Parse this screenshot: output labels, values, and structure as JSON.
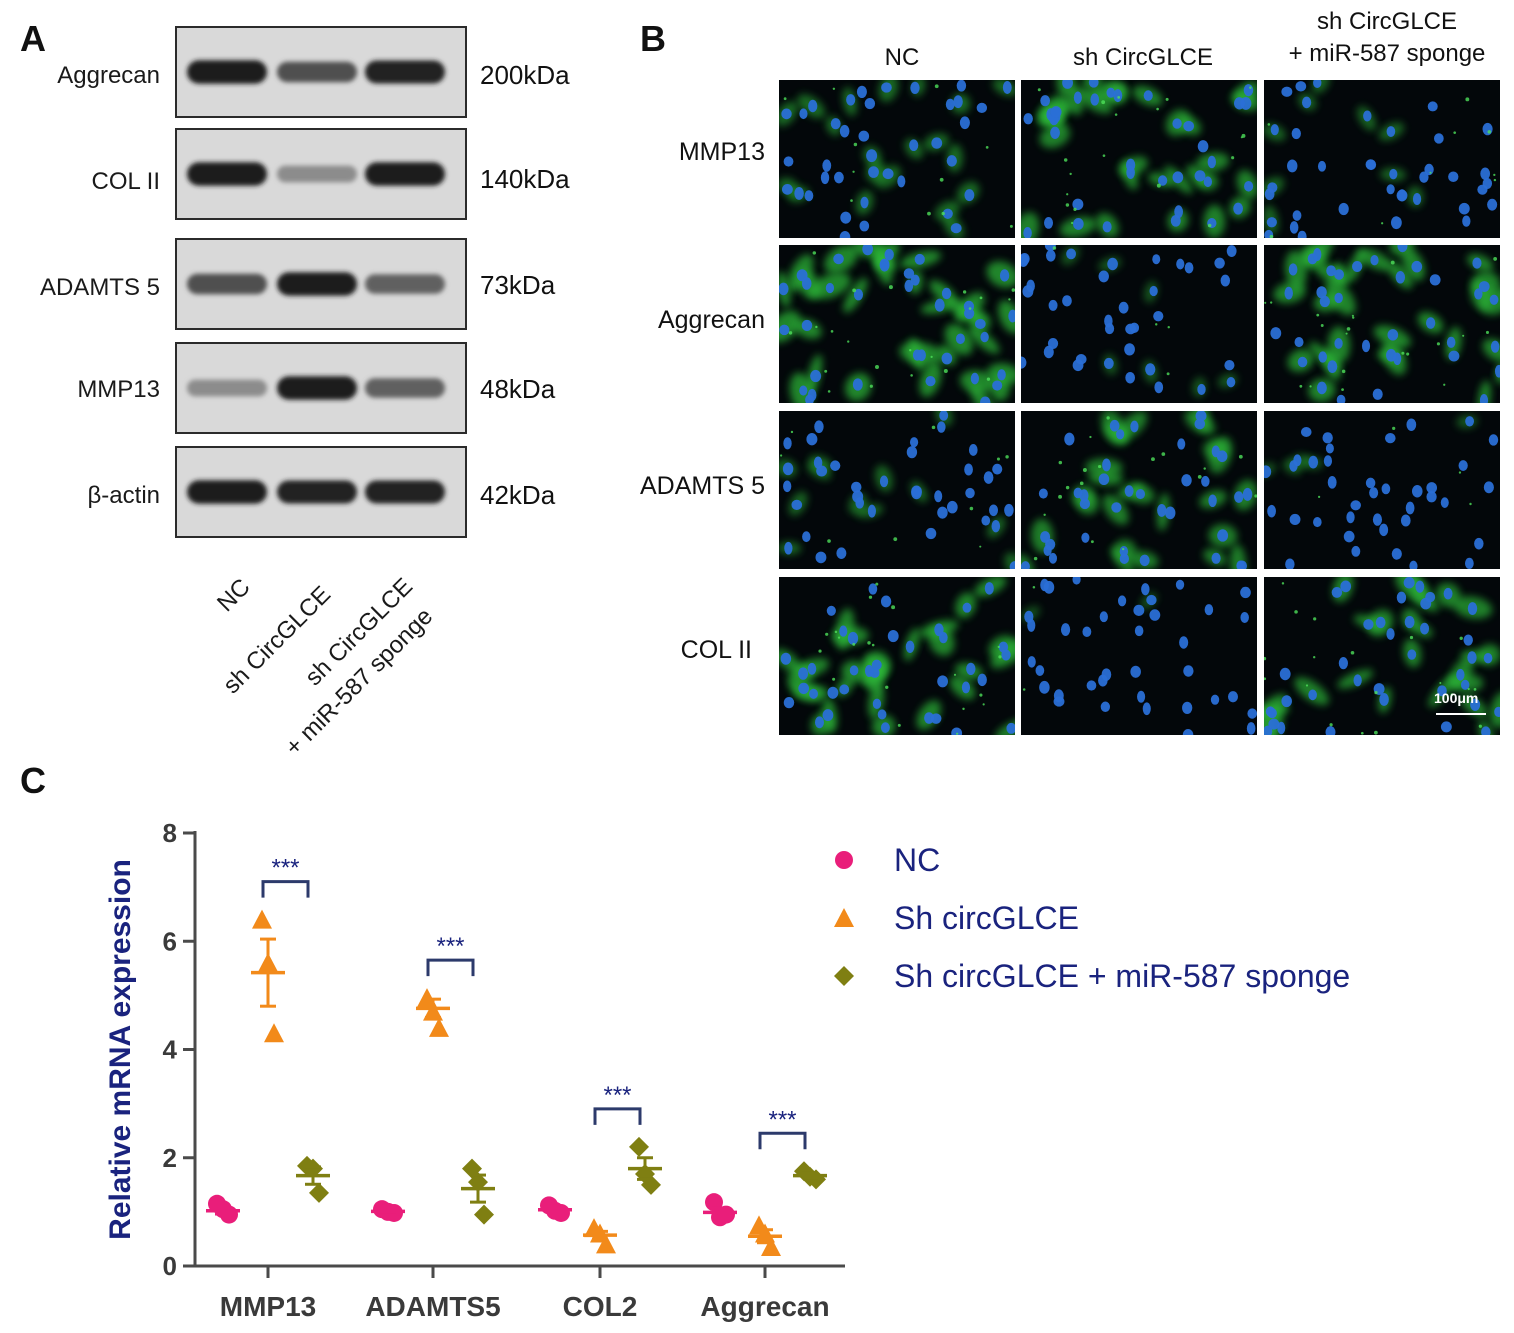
{
  "panel_a": {
    "letter": "A",
    "rows": [
      {
        "protein": "Aggrecan",
        "kda": "200kDa",
        "bands": [
          0.95,
          0.7,
          0.92
        ]
      },
      {
        "protein": "COL II",
        "kda": "140kDa",
        "bands": [
          0.95,
          0.4,
          0.95
        ]
      },
      {
        "protein": "ADAMTS 5",
        "kda": "73kDa",
        "bands": [
          0.7,
          0.95,
          0.62
        ]
      },
      {
        "protein": "MMP13",
        "kda": "48kDa",
        "bands": [
          0.4,
          0.95,
          0.62
        ]
      },
      {
        "protein": "β-actin",
        "kda": "42kDa",
        "bands": [
          0.95,
          0.92,
          0.92
        ]
      }
    ],
    "lanes": [
      "NC",
      "sh CircGLCE",
      "sh CircGLCE",
      "+ miR-587 sponge"
    ]
  },
  "panel_b": {
    "letter": "B",
    "columns": [
      "NC",
      "sh CircGLCE",
      "sh CircGLCE",
      "+ miR-587 sponge"
    ],
    "rows": [
      "MMP13",
      "Aggrecan",
      "ADAMTS 5",
      "COL II"
    ],
    "scale_bar": "100μm",
    "green_intensity": [
      [
        0.45,
        0.75,
        0.35
      ],
      [
        0.85,
        0.15,
        0.8
      ],
      [
        0.35,
        0.7,
        0.15
      ],
      [
        0.8,
        0.08,
        0.75
      ]
    ]
  },
  "panel_c": {
    "letter": "C",
    "significance": "***",
    "colors": {
      "nc": "#e91e7a",
      "sh": "#f28a1a",
      "sponge": "#7f7f12",
      "axis": "#4a4a4a",
      "label": "#1a237e"
    }
  },
  "chart_data": {
    "type": "scatter",
    "categories": [
      "MMP13",
      "ADAMTS5",
      "COL2",
      "Aggrecan"
    ],
    "ylabel": "Relative mRNA expression",
    "xlabel": "",
    "ylim": [
      0,
      8
    ],
    "yticks": [
      0,
      2,
      4,
      6,
      8
    ],
    "legend_position": "right",
    "series": [
      {
        "name": "NC",
        "marker": "circle",
        "points": [
          [
            1.15,
            1.05,
            0.95
          ],
          [
            1.05,
            1.0,
            0.98
          ],
          [
            1.12,
            1.02,
            0.98
          ],
          [
            1.18,
            0.9,
            0.95
          ]
        ],
        "mean": [
          1.02,
          1.01,
          1.04,
          0.99
        ],
        "sem": [
          0.06,
          0.02,
          0.04,
          0.08
        ]
      },
      {
        "name": "Sh circGLCE",
        "marker": "triangle",
        "points": [
          [
            6.4,
            5.6,
            4.3
          ],
          [
            4.95,
            4.7,
            4.4
          ],
          [
            0.7,
            0.6,
            0.4
          ],
          [
            0.75,
            0.6,
            0.35
          ]
        ],
        "mean": [
          5.42,
          4.76,
          0.57,
          0.55
        ],
        "sem": [
          0.62,
          0.17,
          0.07,
          0.12
        ]
      },
      {
        "name": "Sh circGLCE + miR-587 sponge",
        "marker": "diamond",
        "points": [
          [
            1.85,
            1.8,
            1.35
          ],
          [
            1.8,
            1.55,
            0.95
          ],
          [
            2.2,
            1.7,
            1.5
          ],
          [
            1.75,
            1.65,
            1.6
          ]
        ],
        "mean": [
          1.67,
          1.43,
          1.8,
          1.67
        ],
        "sem": [
          0.16,
          0.25,
          0.2,
          0.04
        ]
      }
    ]
  }
}
